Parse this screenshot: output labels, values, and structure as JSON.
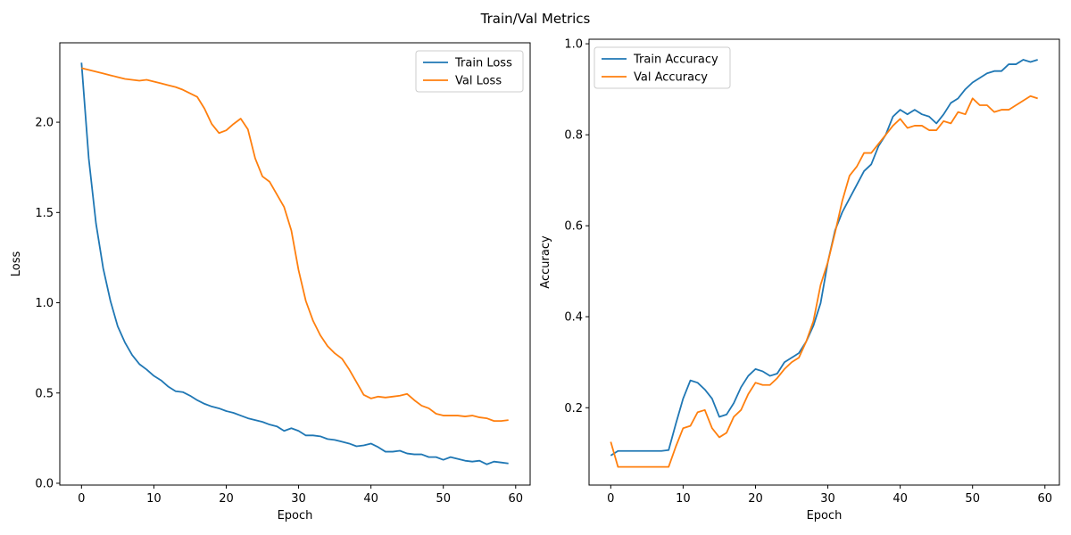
{
  "figure": {
    "title": "Train/Val Metrics"
  },
  "chart_data": [
    {
      "type": "line",
      "title": "",
      "xlabel": "Epoch",
      "ylabel": "Loss",
      "xlim": [
        -3,
        62
      ],
      "ylim": [
        -0.01,
        2.44
      ],
      "xticks": [
        0,
        10,
        20,
        30,
        40,
        50,
        60
      ],
      "yticks": [
        0.0,
        0.5,
        1.0,
        1.5,
        2.0
      ],
      "legend": "top-right",
      "grid": false,
      "series": [
        {
          "name": "Train Loss",
          "color": "#1f77b4",
          "x": [
            0,
            1,
            2,
            3,
            4,
            5,
            6,
            7,
            8,
            9,
            10,
            11,
            12,
            13,
            14,
            15,
            16,
            17,
            18,
            19,
            20,
            21,
            22,
            23,
            24,
            25,
            26,
            27,
            28,
            29,
            30,
            31,
            32,
            33,
            34,
            35,
            36,
            37,
            38,
            39,
            40,
            41,
            42,
            43,
            44,
            45,
            46,
            47,
            48,
            49,
            50,
            51,
            52,
            53,
            54,
            55,
            56,
            57,
            58,
            59
          ],
          "y": [
            2.33,
            1.8,
            1.44,
            1.19,
            1.01,
            0.87,
            0.78,
            0.71,
            0.66,
            0.63,
            0.595,
            0.57,
            0.535,
            0.51,
            0.505,
            0.485,
            0.46,
            0.44,
            0.425,
            0.415,
            0.4,
            0.39,
            0.375,
            0.36,
            0.35,
            0.34,
            0.325,
            0.315,
            0.29,
            0.305,
            0.29,
            0.265,
            0.265,
            0.26,
            0.245,
            0.24,
            0.23,
            0.22,
            0.205,
            0.21,
            0.22,
            0.2,
            0.175,
            0.175,
            0.18,
            0.165,
            0.16,
            0.16,
            0.145,
            0.145,
            0.13,
            0.145,
            0.135,
            0.125,
            0.12,
            0.125,
            0.105,
            0.12,
            0.115,
            0.11
          ]
        },
        {
          "name": "Val Loss",
          "color": "#ff7f0e",
          "x": [
            0,
            1,
            2,
            3,
            4,
            5,
            6,
            7,
            8,
            9,
            10,
            11,
            12,
            13,
            14,
            15,
            16,
            17,
            18,
            19,
            20,
            21,
            22,
            23,
            24,
            25,
            26,
            27,
            28,
            29,
            30,
            31,
            32,
            33,
            34,
            35,
            36,
            37,
            38,
            39,
            40,
            41,
            42,
            43,
            44,
            45,
            46,
            47,
            48,
            49,
            50,
            51,
            52,
            53,
            54,
            55,
            56,
            57,
            58,
            59
          ],
          "y": [
            2.3,
            2.29,
            2.28,
            2.27,
            2.26,
            2.25,
            2.24,
            2.235,
            2.23,
            2.235,
            2.225,
            2.215,
            2.205,
            2.195,
            2.18,
            2.16,
            2.14,
            2.075,
            1.99,
            1.94,
            1.955,
            1.99,
            2.02,
            1.96,
            1.8,
            1.7,
            1.67,
            1.6,
            1.53,
            1.4,
            1.18,
            1.01,
            0.9,
            0.82,
            0.76,
            0.72,
            0.69,
            0.63,
            0.56,
            0.49,
            0.47,
            0.48,
            0.475,
            0.48,
            0.485,
            0.495,
            0.46,
            0.43,
            0.415,
            0.385,
            0.375,
            0.375,
            0.375,
            0.37,
            0.375,
            0.365,
            0.36,
            0.345,
            0.345,
            0.35
          ]
        }
      ]
    },
    {
      "type": "line",
      "title": "",
      "xlabel": "Epoch",
      "ylabel": "Accuracy",
      "xlim": [
        -3,
        62
      ],
      "ylim": [
        0.03,
        1.01
      ],
      "xticks": [
        0,
        10,
        20,
        30,
        40,
        50,
        60
      ],
      "yticks": [
        0.2,
        0.4,
        0.6,
        0.8,
        1.0
      ],
      "legend": "top-left",
      "grid": false,
      "series": [
        {
          "name": "Train Accuracy",
          "color": "#1f77b4",
          "x": [
            0,
            1,
            2,
            3,
            4,
            5,
            6,
            7,
            8,
            9,
            10,
            11,
            12,
            13,
            14,
            15,
            16,
            17,
            18,
            19,
            20,
            21,
            22,
            23,
            24,
            25,
            26,
            27,
            28,
            29,
            30,
            31,
            32,
            33,
            34,
            35,
            36,
            37,
            38,
            39,
            40,
            41,
            42,
            43,
            44,
            45,
            46,
            47,
            48,
            49,
            50,
            51,
            52,
            53,
            54,
            55,
            56,
            57,
            58,
            59
          ],
          "y": [
            0.095,
            0.105,
            0.105,
            0.105,
            0.105,
            0.105,
            0.105,
            0.105,
            0.107,
            0.165,
            0.22,
            0.26,
            0.255,
            0.24,
            0.22,
            0.18,
            0.185,
            0.21,
            0.245,
            0.27,
            0.285,
            0.28,
            0.27,
            0.275,
            0.3,
            0.31,
            0.32,
            0.345,
            0.38,
            0.43,
            0.52,
            0.59,
            0.63,
            0.66,
            0.69,
            0.72,
            0.735,
            0.775,
            0.8,
            0.84,
            0.855,
            0.845,
            0.855,
            0.845,
            0.84,
            0.825,
            0.845,
            0.87,
            0.88,
            0.9,
            0.915,
            0.925,
            0.935,
            0.94,
            0.94,
            0.955,
            0.955,
            0.965,
            0.96,
            0.965
          ]
        },
        {
          "name": "Val Accuracy",
          "color": "#ff7f0e",
          "x": [
            0,
            1,
            2,
            3,
            4,
            5,
            6,
            7,
            8,
            9,
            10,
            11,
            12,
            13,
            14,
            15,
            16,
            17,
            18,
            19,
            20,
            21,
            22,
            23,
            24,
            25,
            26,
            27,
            28,
            29,
            30,
            31,
            32,
            33,
            34,
            35,
            36,
            37,
            38,
            39,
            40,
            41,
            42,
            43,
            44,
            45,
            46,
            47,
            48,
            49,
            50,
            51,
            52,
            53,
            54,
            55,
            56,
            57,
            58,
            59
          ],
          "y": [
            0.125,
            0.07,
            0.07,
            0.07,
            0.07,
            0.07,
            0.07,
            0.07,
            0.07,
            0.115,
            0.155,
            0.16,
            0.19,
            0.195,
            0.155,
            0.135,
            0.145,
            0.18,
            0.195,
            0.23,
            0.255,
            0.25,
            0.25,
            0.265,
            0.285,
            0.3,
            0.31,
            0.345,
            0.39,
            0.47,
            0.52,
            0.585,
            0.655,
            0.71,
            0.73,
            0.76,
            0.76,
            0.78,
            0.8,
            0.82,
            0.835,
            0.815,
            0.82,
            0.82,
            0.81,
            0.81,
            0.83,
            0.825,
            0.85,
            0.845,
            0.88,
            0.865,
            0.865,
            0.85,
            0.855,
            0.855,
            0.865,
            0.875,
            0.885,
            0.88
          ]
        }
      ]
    }
  ]
}
